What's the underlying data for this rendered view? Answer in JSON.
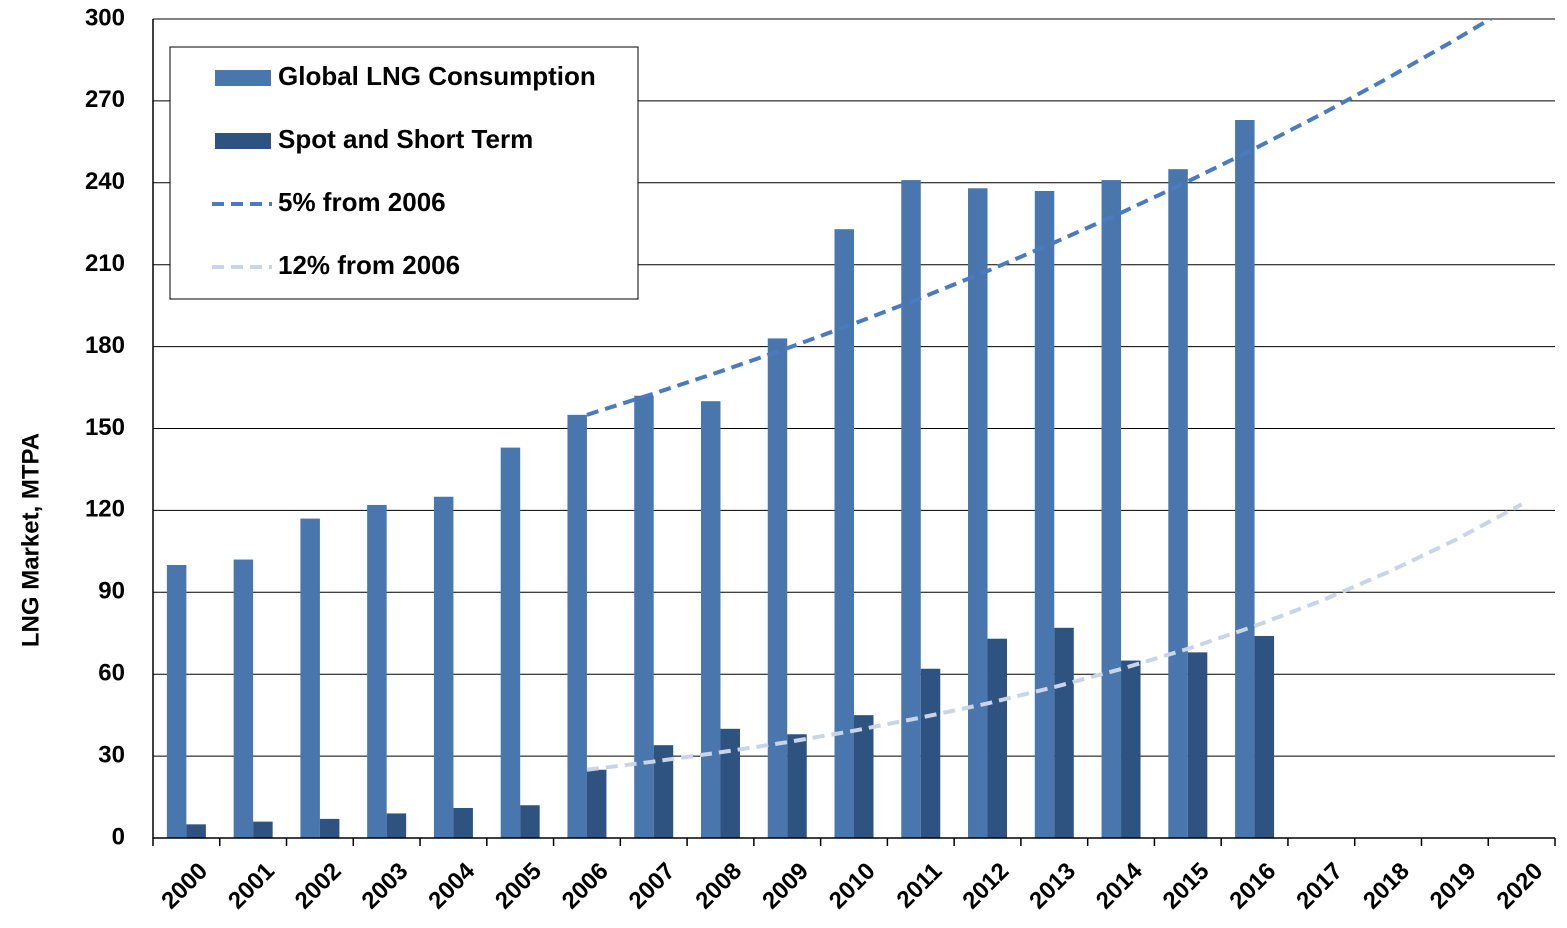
{
  "chart_data": {
    "type": "bar",
    "y_axis_label": "LNG Market, MTPA",
    "categories": [
      "2000",
      "2001",
      "2002",
      "2003",
      "2004",
      "2005",
      "2006",
      "2007",
      "2008",
      "2009",
      "2010",
      "2011",
      "2012",
      "2013",
      "2014",
      "2015",
      "2016",
      "2017",
      "2018",
      "2019",
      "2020"
    ],
    "series": [
      {
        "name": "Global LNG Consumption",
        "type": "bar",
        "color": "#4a76ae",
        "values": [
          100,
          102,
          117,
          122,
          125,
          143,
          155,
          162,
          160,
          183,
          223,
          241,
          238,
          237,
          241,
          245,
          263,
          null,
          null,
          null,
          null
        ]
      },
      {
        "name": "Spot and Short Term",
        "type": "bar",
        "color": "#2e5380",
        "values": [
          5,
          6,
          7,
          9,
          11,
          12,
          25,
          34,
          40,
          38,
          45,
          62,
          73,
          77,
          65,
          68,
          74,
          null,
          null,
          null,
          null
        ]
      },
      {
        "name": "5% from 2006",
        "type": "line",
        "dashed": true,
        "color": "#4a7bbf",
        "values": [
          null,
          null,
          null,
          null,
          null,
          null,
          155,
          162.8,
          170.9,
          179.4,
          188.4,
          197.8,
          207.7,
          218.1,
          229,
          240.5,
          252.5,
          265.1,
          278.4,
          292.3,
          306.9
        ]
      },
      {
        "name": "12% from 2006",
        "type": "line",
        "dashed": true,
        "color": "#c9d4e6",
        "values": [
          null,
          null,
          null,
          null,
          null,
          null,
          25,
          28,
          31.4,
          35.1,
          39.3,
          44.1,
          49.3,
          55.3,
          61.9,
          69.3,
          77.6,
          86.9,
          97.4,
          109.1,
          122.2
        ]
      }
    ],
    "ylim": [
      0,
      300
    ],
    "yticks": [
      0,
      30,
      60,
      90,
      120,
      150,
      180,
      210,
      240,
      270,
      300
    ],
    "grid": true
  }
}
